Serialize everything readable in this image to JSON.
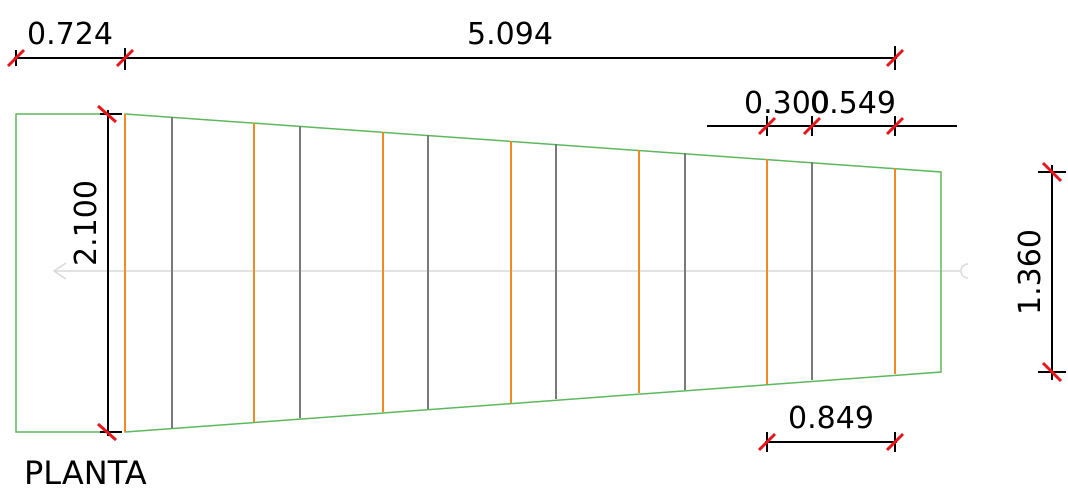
{
  "drawing": {
    "title": "PLANTA",
    "dimensions": {
      "top_left": "0.724",
      "top_main": "5.094",
      "spacing_a": "0.300",
      "spacing_b": "0.549",
      "left_height": "2.100",
      "right_height": "1.360",
      "bottom_spacing": "0.849"
    },
    "colors": {
      "outline": "#5cb85c",
      "rib_orange": "#f08a24",
      "rib_gray": "#7a7a7a",
      "dimension_line": "#000000",
      "tick": "#e8161b",
      "axis": "#d9d9d9"
    }
  }
}
